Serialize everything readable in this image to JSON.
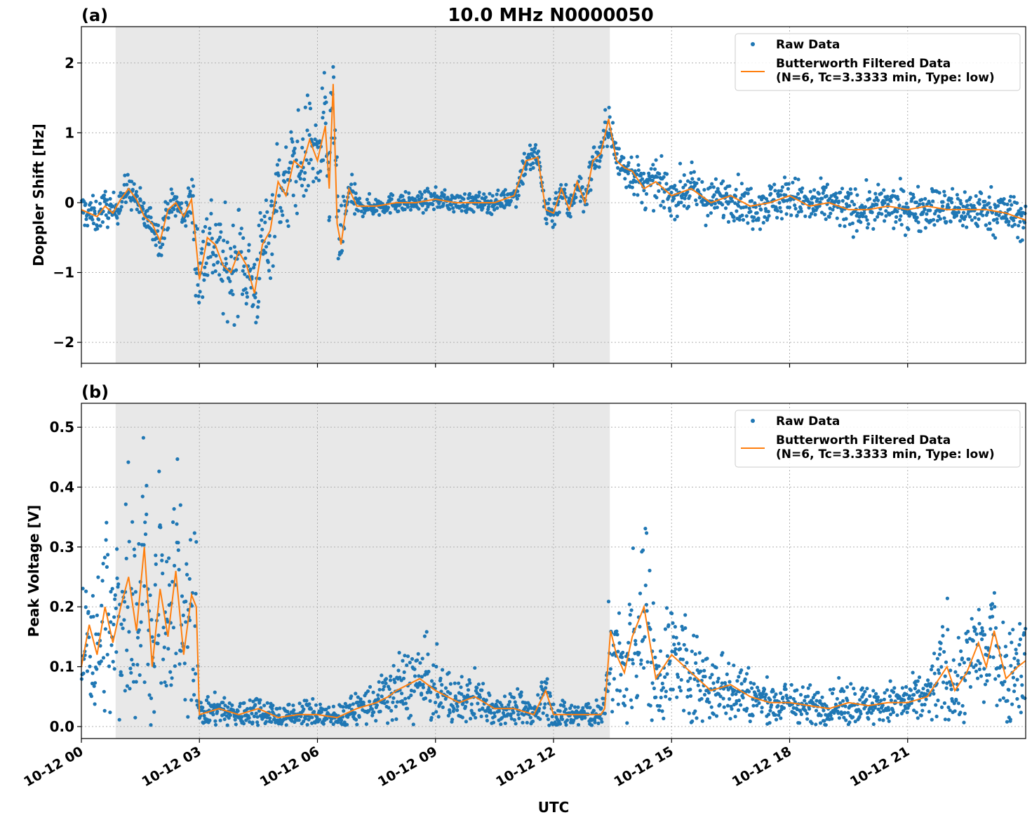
{
  "figure": {
    "title": "10.0 MHz N0000050",
    "xlabel": "UTC",
    "colors": {
      "raw": "#1f77b4",
      "filtered": "#ff7f0e",
      "shade": "#e8e8e8",
      "grid": "#b0b0b0",
      "axis": "#000000"
    }
  },
  "chart_data": [
    {
      "type": "scatter",
      "panel_label": "(a)",
      "ylabel": "Doppler Shift [Hz]",
      "xlim": [
        0,
        24
      ],
      "ylim": [
        -2.3,
        2.52
      ],
      "x_ticks": [
        0,
        3,
        6,
        9,
        12,
        15,
        18,
        21
      ],
      "x_tick_labels": [
        "10-12 00",
        "10-12 03",
        "10-12 06",
        "10-12 09",
        "10-12 12",
        "10-12 15",
        "10-12 18",
        "10-12 21"
      ],
      "show_x_tick_labels": false,
      "y_ticks": [
        -2,
        -1,
        0,
        1,
        2
      ],
      "y_tick_labels": [
        "−2",
        "−1",
        "0",
        "1",
        "2"
      ],
      "grid": true,
      "shaded_x_range": [
        0.87,
        13.43
      ],
      "legend": {
        "position": "top-right",
        "entries": [
          {
            "label": "Raw Data",
            "marker": "dot"
          },
          {
            "label": "Butterworth Filtered Data",
            "label2": "(N=6, Tc=3.3333 min, Type: low)",
            "marker": "line"
          }
        ]
      },
      "series": [
        {
          "name": "Butterworth Filtered Data",
          "style": "line",
          "x": [
            0,
            0.2,
            0.4,
            0.6,
            0.8,
            1.0,
            1.2,
            1.4,
            1.6,
            1.8,
            2.0,
            2.2,
            2.4,
            2.6,
            2.8,
            2.9,
            3.0,
            3.2,
            3.4,
            3.6,
            3.8,
            4.0,
            4.2,
            4.4,
            4.6,
            4.8,
            5.0,
            5.2,
            5.4,
            5.6,
            5.8,
            6.0,
            6.2,
            6.3,
            6.4,
            6.5,
            6.6,
            6.8,
            7.0,
            7.5,
            8.0,
            8.5,
            9.0,
            9.5,
            10.0,
            10.5,
            11.0,
            11.3,
            11.6,
            11.8,
            12.0,
            12.2,
            12.4,
            12.6,
            12.8,
            13.0,
            13.2,
            13.4,
            13.6,
            13.8,
            14.0,
            14.3,
            14.6,
            15.0,
            15.5,
            16.0,
            16.5,
            17.0,
            17.5,
            18.0,
            18.5,
            19.0,
            19.5,
            20.0,
            20.5,
            21.0,
            21.5,
            22.0,
            22.5,
            23.0,
            23.5,
            24.0
          ],
          "y": [
            -0.1,
            -0.15,
            -0.2,
            -0.05,
            -0.15,
            0.05,
            0.2,
            0.05,
            -0.2,
            -0.3,
            -0.55,
            -0.1,
            0.0,
            -0.2,
            0.05,
            -0.5,
            -1.1,
            -0.5,
            -0.6,
            -0.9,
            -1.0,
            -0.7,
            -0.9,
            -1.3,
            -0.6,
            -0.4,
            0.3,
            0.1,
            0.6,
            0.5,
            0.9,
            0.6,
            1.1,
            0.2,
            1.7,
            -0.3,
            -0.6,
            0.2,
            -0.05,
            -0.05,
            0.0,
            0.0,
            0.05,
            0.0,
            0.0,
            0.0,
            0.1,
            0.6,
            0.65,
            -0.1,
            -0.15,
            0.2,
            -0.1,
            0.3,
            0.0,
            0.6,
            0.7,
            1.2,
            0.6,
            0.5,
            0.45,
            0.2,
            0.3,
            0.1,
            0.2,
            0.0,
            0.1,
            -0.05,
            0.0,
            0.1,
            -0.05,
            0.0,
            -0.1,
            -0.1,
            -0.05,
            -0.1,
            -0.05,
            -0.1,
            -0.1,
            -0.1,
            -0.15,
            -0.25
          ]
        }
      ]
    },
    {
      "type": "scatter",
      "panel_label": "(b)",
      "ylabel": "Peak Voltage [V]",
      "xlim": [
        0,
        24
      ],
      "ylim": [
        -0.02,
        0.54
      ],
      "x_ticks": [
        0,
        3,
        6,
        9,
        12,
        15,
        18,
        21
      ],
      "x_tick_labels": [
        "10-12 00",
        "10-12 03",
        "10-12 06",
        "10-12 09",
        "10-12 12",
        "10-12 15",
        "10-12 18",
        "10-12 21"
      ],
      "show_x_tick_labels": true,
      "y_ticks": [
        0.0,
        0.1,
        0.2,
        0.3,
        0.4,
        0.5
      ],
      "y_tick_labels": [
        "0.0",
        "0.1",
        "0.2",
        "0.3",
        "0.4",
        "0.5"
      ],
      "grid": true,
      "shaded_x_range": [
        0.87,
        13.43
      ],
      "legend": {
        "position": "top-right",
        "entries": [
          {
            "label": "Raw Data",
            "marker": "dot"
          },
          {
            "label": "Butterworth Filtered Data",
            "label2": "(N=6, Tc=3.3333 min, Type: low)",
            "marker": "line"
          }
        ]
      },
      "series": [
        {
          "name": "Butterworth Filtered Data",
          "style": "line",
          "x": [
            0,
            0.2,
            0.4,
            0.6,
            0.8,
            1.0,
            1.2,
            1.4,
            1.6,
            1.8,
            2.0,
            2.2,
            2.4,
            2.6,
            2.8,
            2.92,
            3.0,
            3.5,
            4.0,
            4.5,
            5.0,
            5.5,
            6.0,
            6.5,
            7.0,
            7.5,
            7.8,
            8.0,
            8.3,
            8.6,
            9.0,
            9.3,
            9.6,
            10.0,
            10.5,
            11.0,
            11.5,
            11.8,
            12.0,
            12.5,
            13.0,
            13.2,
            13.3,
            13.45,
            13.6,
            13.8,
            14.0,
            14.3,
            14.6,
            15.0,
            15.5,
            16.0,
            16.5,
            17.0,
            17.5,
            18.0,
            18.5,
            19.0,
            19.5,
            20.0,
            20.5,
            21.0,
            21.5,
            22.0,
            22.2,
            22.5,
            22.8,
            23.0,
            23.2,
            23.5,
            23.8,
            24.0
          ],
          "y": [
            0.1,
            0.17,
            0.12,
            0.2,
            0.14,
            0.2,
            0.25,
            0.16,
            0.3,
            0.1,
            0.23,
            0.15,
            0.26,
            0.12,
            0.22,
            0.2,
            0.02,
            0.03,
            0.02,
            0.03,
            0.015,
            0.02,
            0.02,
            0.015,
            0.03,
            0.04,
            0.05,
            0.06,
            0.07,
            0.08,
            0.06,
            0.05,
            0.04,
            0.05,
            0.03,
            0.03,
            0.02,
            0.06,
            0.02,
            0.02,
            0.02,
            0.02,
            0.03,
            0.16,
            0.12,
            0.09,
            0.15,
            0.2,
            0.08,
            0.12,
            0.09,
            0.06,
            0.07,
            0.05,
            0.04,
            0.04,
            0.035,
            0.03,
            0.04,
            0.035,
            0.04,
            0.04,
            0.05,
            0.1,
            0.06,
            0.09,
            0.14,
            0.1,
            0.16,
            0.08,
            0.1,
            0.11
          ]
        }
      ]
    }
  ]
}
